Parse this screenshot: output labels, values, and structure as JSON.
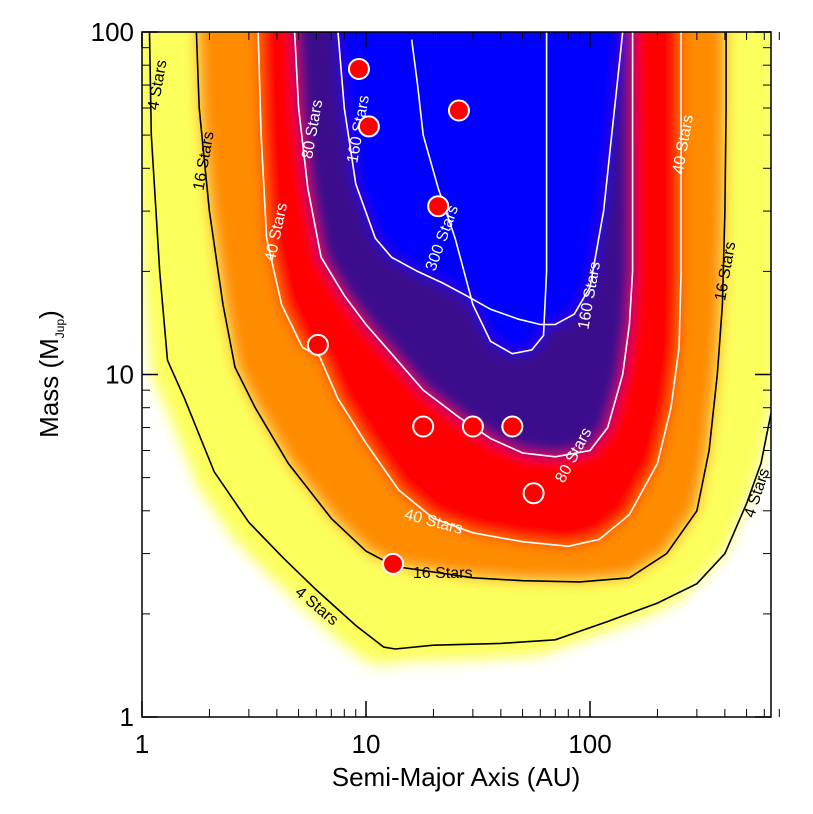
{
  "chart_data": {
    "type": "contour",
    "xlabel": "Semi-Major Axis (AU)",
    "ylabel": "Mass (M",
    "ylabel_sub": "Jup",
    "ylabel_close": ")",
    "xscale": "log",
    "yscale": "log",
    "xlim": [
      1,
      700
    ],
    "ylim": [
      1,
      100
    ],
    "xticks": [
      {
        "value": 1,
        "label": "1"
      },
      {
        "value": 10,
        "label": "10"
      },
      {
        "value": 100,
        "label": "100"
      }
    ],
    "yticks": [
      {
        "value": 1,
        "label": "1"
      },
      {
        "value": 10,
        "label": "10"
      },
      {
        "value": 100,
        "label": "100"
      }
    ],
    "contours": [
      {
        "level": "4 Stars",
        "color": "#000000",
        "points": [
          [
            1.08,
            100
          ],
          [
            1.1,
            50
          ],
          [
            1.2,
            20
          ],
          [
            1.3,
            11
          ],
          [
            1.55,
            8.5
          ],
          [
            2.1,
            5.2
          ],
          [
            3,
            3.7
          ],
          [
            4.3,
            2.9
          ],
          [
            6,
            2.35
          ],
          [
            9,
            1.85
          ],
          [
            12,
            1.6
          ],
          [
            13.5,
            1.58
          ],
          [
            20,
            1.62
          ],
          [
            40,
            1.64
          ],
          [
            70,
            1.68
          ],
          [
            120,
            1.9
          ],
          [
            200,
            2.15
          ],
          [
            300,
            2.45
          ],
          [
            400,
            3
          ],
          [
            500,
            4.2
          ],
          [
            580,
            5.5
          ],
          [
            650,
            8
          ],
          [
            680,
            10
          ]
        ],
        "label_anchors": [
          [
            1.18,
            70,
            -80
          ],
          [
            6,
            2.1,
            40
          ],
          [
            560,
            4.5,
            -72
          ]
        ]
      },
      {
        "level": "16 Stars",
        "color": "#000000",
        "points": [
          [
            1.75,
            100
          ],
          [
            1.8,
            60
          ],
          [
            2,
            30
          ],
          [
            2.3,
            16
          ],
          [
            2.6,
            10.5
          ],
          [
            3.2,
            8
          ],
          [
            4.5,
            5.5
          ],
          [
            7,
            3.8
          ],
          [
            10,
            3.05
          ],
          [
            13.5,
            2.75
          ],
          [
            20,
            2.65
          ],
          [
            30,
            2.55
          ],
          [
            50,
            2.5
          ],
          [
            90,
            2.48
          ],
          [
            150,
            2.55
          ],
          [
            220,
            3
          ],
          [
            300,
            4
          ],
          [
            340,
            6
          ],
          [
            370,
            10
          ],
          [
            390,
            16
          ],
          [
            400,
            30
          ],
          [
            405,
            60
          ],
          [
            405,
            100
          ]
        ],
        "label_anchors": [
          [
            1.9,
            42,
            -80
          ],
          [
            22,
            2.62,
            0
          ],
          [
            405,
            20,
            -80
          ]
        ]
      },
      {
        "level": "40 Stars",
        "color": "#ffffff",
        "points": [
          [
            3.3,
            100
          ],
          [
            3.4,
            50
          ],
          [
            3.6,
            25
          ],
          [
            4.2,
            16
          ],
          [
            5.2,
            12
          ],
          [
            6.2,
            11.3
          ],
          [
            7.5,
            8.5
          ],
          [
            10,
            6.3
          ],
          [
            14,
            4.6
          ],
          [
            20,
            3.8
          ],
          [
            30,
            3.45
          ],
          [
            50,
            3.25
          ],
          [
            80,
            3.15
          ],
          [
            110,
            3.3
          ],
          [
            150,
            3.9
          ],
          [
            200,
            5.5
          ],
          [
            230,
            8
          ],
          [
            250,
            12
          ],
          [
            255,
            20
          ],
          [
            255,
            40
          ],
          [
            255,
            100
          ]
        ],
        "label_anchors": [
          [
            4.0,
            26,
            -78
          ],
          [
            20,
            3.7,
            15
          ],
          [
            262,
            47,
            -80
          ]
        ]
      },
      {
        "level": "80 Stars",
        "color": "#ffffff",
        "points": [
          [
            4.8,
            100
          ],
          [
            5,
            60
          ],
          [
            5.5,
            35
          ],
          [
            6.3,
            22
          ],
          [
            8,
            17
          ],
          [
            10,
            14
          ],
          [
            13,
            11.5
          ],
          [
            18,
            9
          ],
          [
            26,
            7.5
          ],
          [
            36,
            6.5
          ],
          [
            50,
            5.9
          ],
          [
            70,
            5.75
          ],
          [
            100,
            6
          ],
          [
            120,
            7
          ],
          [
            140,
            10
          ],
          [
            150,
            14
          ],
          [
            155,
            20
          ],
          [
            155,
            40
          ],
          [
            155,
            100
          ]
        ],
        "label_anchors": [
          [
            5.8,
            52,
            -80
          ],
          [
            85,
            5.8,
            -62
          ]
        ]
      },
      {
        "level": "160 Stars",
        "color": "#ffffff",
        "points": [
          [
            7.5,
            100
          ],
          [
            8,
            60
          ],
          [
            9,
            36
          ],
          [
            11,
            25
          ],
          [
            13,
            22
          ],
          [
            17,
            20
          ],
          [
            22,
            18.5
          ],
          [
            28,
            17
          ],
          [
            36,
            15.5
          ],
          [
            48,
            14.5
          ],
          [
            60,
            14
          ],
          [
            70,
            14
          ],
          [
            85,
            15
          ],
          [
            100,
            18
          ],
          [
            115,
            30
          ],
          [
            125,
            50
          ],
          [
            135,
            80
          ],
          [
            140,
            100
          ]
        ],
        "label_anchors": [
          [
            9.3,
            52,
            -80
          ],
          [
            100,
            17,
            -80
          ]
        ]
      },
      {
        "level": "300 Stars",
        "color": "#ffffff",
        "points": [
          [
            16,
            95
          ],
          [
            17,
            70
          ],
          [
            18,
            50
          ],
          [
            21,
            35
          ],
          [
            25,
            25
          ],
          [
            30,
            16
          ],
          [
            36,
            12.5
          ],
          [
            45,
            11.5
          ],
          [
            55,
            11.8
          ],
          [
            62,
            13
          ],
          [
            64,
            20
          ],
          [
            64,
            40
          ],
          [
            64,
            100
          ]
        ],
        "label_anchors": [
          [
            22,
            25,
            -70
          ]
        ]
      }
    ],
    "data_points": [
      {
        "x": 9.3,
        "y": 78
      },
      {
        "x": 10.3,
        "y": 53
      },
      {
        "x": 26,
        "y": 59
      },
      {
        "x": 21,
        "y": 31
      },
      {
        "x": 6.1,
        "y": 12.2
      },
      {
        "x": 18,
        "y": 7.05
      },
      {
        "x": 30,
        "y": 7.05
      },
      {
        "x": 45,
        "y": 7.05
      },
      {
        "x": 56,
        "y": 4.5
      },
      {
        "x": 13.2,
        "y": 2.8
      }
    ],
    "colormap": [
      {
        "level": 0,
        "color": "#ffffff"
      },
      {
        "level": 3,
        "color": "#fbff5c"
      },
      {
        "level": 10,
        "color": "#8c8c2a"
      },
      {
        "level": 16,
        "color": "#ff8c00"
      },
      {
        "level": 30,
        "color": "#ff0000"
      },
      {
        "level": 45,
        "color": "#7a0030"
      },
      {
        "level": 80,
        "color": "#3a0b8c"
      },
      {
        "level": 300,
        "color": "#0000ff"
      }
    ],
    "point_color": "#ff0000"
  }
}
